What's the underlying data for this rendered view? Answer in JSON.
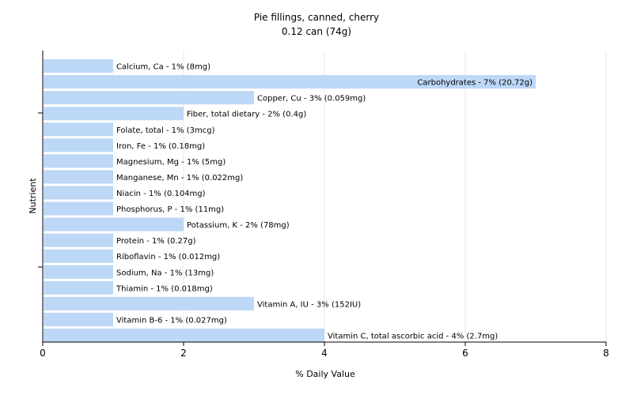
{
  "chart_data": {
    "type": "bar",
    "orientation": "horizontal",
    "title": "Pie fillings, canned, cherry",
    "subtitle": "0.12 can (74g)",
    "xlabel": "% Daily Value",
    "ylabel": "Nutrient",
    "xlim": [
      0,
      8
    ],
    "xticks": [
      "0",
      "2",
      "4",
      "6",
      "8"
    ],
    "grid": true,
    "bar_color": "#bdd7f7",
    "categories": [
      "Calcium, Ca",
      "Carbohydrates",
      "Copper, Cu",
      "Fiber, total dietary",
      "Folate, total",
      "Iron, Fe",
      "Magnesium, Mg",
      "Manganese, Mn",
      "Niacin",
      "Phosphorus, P",
      "Potassium, K",
      "Protein",
      "Riboflavin",
      "Sodium, Na",
      "Thiamin",
      "Vitamin A, IU",
      "Vitamin B-6",
      "Vitamin C, total ascorbic acid"
    ],
    "values": [
      1,
      7,
      3,
      2,
      1,
      1,
      1,
      1,
      1,
      1,
      2,
      1,
      1,
      1,
      1,
      3,
      1,
      4
    ],
    "labels": [
      "Calcium, Ca - 1% (8mg)",
      "Carbohydrates - 7% (20.72g)",
      "Copper, Cu - 3% (0.059mg)",
      "Fiber, total dietary - 2% (0.4g)",
      "Folate, total - 1% (3mcg)",
      "Iron, Fe - 1% (0.18mg)",
      "Magnesium, Mg - 1% (5mg)",
      "Manganese, Mn - 1% (0.022mg)",
      "Niacin - 1% (0.104mg)",
      "Phosphorus, P - 1% (11mg)",
      "Potassium, K - 2% (78mg)",
      "Protein - 1% (0.27g)",
      "Riboflavin - 1% (0.012mg)",
      "Sodium, Na - 1% (13mg)",
      "Thiamin - 1% (0.018mg)",
      "Vitamin A, IU - 3% (152IU)",
      "Vitamin B-6 - 1% (0.027mg)",
      "Vitamin C, total ascorbic acid - 4% (2.7mg)"
    ]
  }
}
